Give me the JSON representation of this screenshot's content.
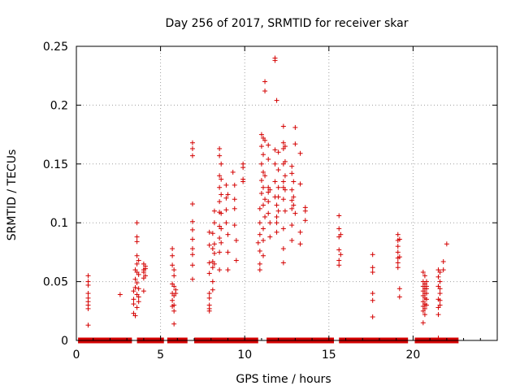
{
  "chart_data": {
    "type": "scatter",
    "title": "Day 256 of 2017, SRMTID for receiver skar",
    "xlabel": "GPS time / hours",
    "ylabel": "SRMTID / TECUs",
    "xlim": [
      0,
      25
    ],
    "ylim": [
      0,
      0.25
    ],
    "xticks": [
      0,
      5,
      10,
      15,
      20
    ],
    "xtick_labels": [
      "0",
      "5",
      "10",
      "15",
      "20"
    ],
    "yticks": [
      0,
      0.05,
      0.1,
      0.15,
      0.2,
      0.25
    ],
    "ytick_labels": [
      "0",
      "0.05",
      "0.1",
      "0.15",
      "0.2",
      "0.25"
    ],
    "grid": true,
    "legend": "none",
    "marker": "plus",
    "color": "#d40000",
    "zero_band": [
      [
        0.1,
        3.3
      ],
      [
        3.6,
        5.2
      ],
      [
        5.4,
        6.6
      ],
      [
        7.0,
        10.8
      ],
      [
        11.3,
        15.3
      ],
      [
        15.6,
        19.7
      ],
      [
        20.1,
        22.7
      ]
    ],
    "points": [
      [
        0.7,
        0.055
      ],
      [
        0.7,
        0.05
      ],
      [
        0.7,
        0.047
      ],
      [
        0.7,
        0.04
      ],
      [
        0.7,
        0.036
      ],
      [
        0.7,
        0.033
      ],
      [
        0.7,
        0.03
      ],
      [
        0.7,
        0.027
      ],
      [
        0.7,
        0.013
      ],
      [
        2.6,
        0.039
      ],
      [
        3.4,
        0.042
      ],
      [
        3.4,
        0.035
      ],
      [
        3.4,
        0.031
      ],
      [
        3.4,
        0.023
      ],
      [
        3.5,
        0.06
      ],
      [
        3.5,
        0.052
      ],
      [
        3.5,
        0.045
      ],
      [
        3.5,
        0.021
      ],
      [
        3.6,
        0.1
      ],
      [
        3.6,
        0.088
      ],
      [
        3.6,
        0.084
      ],
      [
        3.6,
        0.072
      ],
      [
        3.6,
        0.065
      ],
      [
        3.6,
        0.058
      ],
      [
        3.6,
        0.049
      ],
      [
        3.6,
        0.039
      ],
      [
        3.6,
        0.028
      ],
      [
        3.7,
        0.068
      ],
      [
        3.7,
        0.056
      ],
      [
        3.7,
        0.044
      ],
      [
        3.7,
        0.037
      ],
      [
        3.7,
        0.033
      ],
      [
        4.0,
        0.065
      ],
      [
        4.0,
        0.06
      ],
      [
        4.0,
        0.058
      ],
      [
        4.0,
        0.053
      ],
      [
        4.0,
        0.042
      ],
      [
        4.1,
        0.063
      ],
      [
        4.1,
        0.061
      ],
      [
        4.1,
        0.055
      ],
      [
        5.7,
        0.078
      ],
      [
        5.7,
        0.072
      ],
      [
        5.7,
        0.064
      ],
      [
        5.7,
        0.048
      ],
      [
        5.7,
        0.04
      ],
      [
        5.7,
        0.034
      ],
      [
        5.7,
        0.029
      ],
      [
        5.8,
        0.06
      ],
      [
        5.8,
        0.055
      ],
      [
        5.8,
        0.046
      ],
      [
        5.8,
        0.038
      ],
      [
        5.8,
        0.03
      ],
      [
        5.8,
        0.025
      ],
      [
        5.8,
        0.014
      ],
      [
        5.9,
        0.043
      ],
      [
        5.9,
        0.04
      ],
      [
        6.9,
        0.168
      ],
      [
        6.9,
        0.163
      ],
      [
        6.9,
        0.157
      ],
      [
        6.9,
        0.116
      ],
      [
        6.9,
        0.101
      ],
      [
        6.9,
        0.094
      ],
      [
        6.9,
        0.086
      ],
      [
        6.9,
        0.078
      ],
      [
        6.9,
        0.073
      ],
      [
        6.9,
        0.064
      ],
      [
        6.9,
        0.052
      ],
      [
        7.9,
        0.092
      ],
      [
        7.9,
        0.081
      ],
      [
        7.9,
        0.066
      ],
      [
        7.9,
        0.057
      ],
      [
        7.9,
        0.04
      ],
      [
        7.9,
        0.036
      ],
      [
        7.9,
        0.03
      ],
      [
        7.9,
        0.027
      ],
      [
        7.9,
        0.025
      ],
      [
        8.1,
        0.091
      ],
      [
        8.1,
        0.078
      ],
      [
        8.1,
        0.067
      ],
      [
        8.1,
        0.062
      ],
      [
        8.1,
        0.05
      ],
      [
        8.1,
        0.043
      ],
      [
        8.2,
        0.11
      ],
      [
        8.2,
        0.1
      ],
      [
        8.2,
        0.082
      ],
      [
        8.2,
        0.074
      ],
      [
        8.2,
        0.065
      ],
      [
        8.5,
        0.163
      ],
      [
        8.5,
        0.157
      ],
      [
        8.5,
        0.14
      ],
      [
        8.5,
        0.13
      ],
      [
        8.5,
        0.118
      ],
      [
        8.5,
        0.109
      ],
      [
        8.5,
        0.097
      ],
      [
        8.5,
        0.087
      ],
      [
        8.5,
        0.075
      ],
      [
        8.5,
        0.06
      ],
      [
        8.6,
        0.15
      ],
      [
        8.6,
        0.137
      ],
      [
        8.6,
        0.124
      ],
      [
        8.6,
        0.108
      ],
      [
        8.6,
        0.095
      ],
      [
        8.6,
        0.083
      ],
      [
        8.9,
        0.132
      ],
      [
        8.9,
        0.121
      ],
      [
        8.9,
        0.111
      ],
      [
        8.9,
        0.1
      ],
      [
        9.0,
        0.124
      ],
      [
        9.0,
        0.09
      ],
      [
        9.0,
        0.075
      ],
      [
        9.0,
        0.06
      ],
      [
        9.3,
        0.143
      ],
      [
        9.4,
        0.132
      ],
      [
        9.4,
        0.12
      ],
      [
        9.4,
        0.112
      ],
      [
        9.4,
        0.098
      ],
      [
        9.5,
        0.085
      ],
      [
        9.5,
        0.068
      ],
      [
        9.9,
        0.15
      ],
      [
        9.9,
        0.147
      ],
      [
        9.9,
        0.137
      ],
      [
        9.9,
        0.135
      ],
      [
        10.8,
        0.083
      ],
      [
        10.9,
        0.112
      ],
      [
        10.9,
        0.1
      ],
      [
        10.9,
        0.09
      ],
      [
        10.9,
        0.076
      ],
      [
        10.9,
        0.065
      ],
      [
        10.9,
        0.06
      ],
      [
        11.0,
        0.175
      ],
      [
        11.0,
        0.165
      ],
      [
        11.0,
        0.15
      ],
      [
        11.0,
        0.136
      ],
      [
        11.0,
        0.125
      ],
      [
        11.1,
        0.172
      ],
      [
        11.1,
        0.158
      ],
      [
        11.1,
        0.143
      ],
      [
        11.1,
        0.13
      ],
      [
        11.1,
        0.115
      ],
      [
        11.1,
        0.095
      ],
      [
        11.1,
        0.085
      ],
      [
        11.1,
        0.072
      ],
      [
        11.2,
        0.22
      ],
      [
        11.2,
        0.212
      ],
      [
        11.2,
        0.17
      ],
      [
        11.2,
        0.14
      ],
      [
        11.2,
        0.12
      ],
      [
        11.2,
        0.105
      ],
      [
        11.4,
        0.166
      ],
      [
        11.4,
        0.154
      ],
      [
        11.4,
        0.13
      ],
      [
        11.4,
        0.126
      ],
      [
        11.4,
        0.118
      ],
      [
        11.4,
        0.108
      ],
      [
        11.5,
        0.128
      ],
      [
        11.5,
        0.1
      ],
      [
        11.5,
        0.088
      ],
      [
        11.8,
        0.24
      ],
      [
        11.8,
        0.238
      ],
      [
        11.8,
        0.162
      ],
      [
        11.8,
        0.15
      ],
      [
        11.8,
        0.135
      ],
      [
        11.8,
        0.122
      ],
      [
        11.9,
        0.204
      ],
      [
        11.9,
        0.115
      ],
      [
        11.9,
        0.105
      ],
      [
        11.9,
        0.1
      ],
      [
        11.9,
        0.092
      ],
      [
        12.0,
        0.16
      ],
      [
        12.0,
        0.145
      ],
      [
        12.0,
        0.13
      ],
      [
        12.0,
        0.122
      ],
      [
        12.0,
        0.11
      ],
      [
        12.3,
        0.182
      ],
      [
        12.3,
        0.168
      ],
      [
        12.3,
        0.163
      ],
      [
        12.3,
        0.15
      ],
      [
        12.3,
        0.135
      ],
      [
        12.3,
        0.13
      ],
      [
        12.3,
        0.12
      ],
      [
        12.3,
        0.095
      ],
      [
        12.3,
        0.078
      ],
      [
        12.3,
        0.066
      ],
      [
        12.4,
        0.165
      ],
      [
        12.4,
        0.152
      ],
      [
        12.4,
        0.14
      ],
      [
        12.4,
        0.128
      ],
      [
        12.4,
        0.11
      ],
      [
        12.8,
        0.148
      ],
      [
        12.8,
        0.142
      ],
      [
        12.8,
        0.128
      ],
      [
        12.8,
        0.119
      ],
      [
        12.8,
        0.112
      ],
      [
        12.8,
        0.098
      ],
      [
        12.8,
        0.085
      ],
      [
        12.9,
        0.135
      ],
      [
        12.9,
        0.122
      ],
      [
        12.9,
        0.115
      ],
      [
        13.0,
        0.181
      ],
      [
        13.0,
        0.167
      ],
      [
        13.0,
        0.108
      ],
      [
        13.3,
        0.159
      ],
      [
        13.3,
        0.133
      ],
      [
        13.3,
        0.092
      ],
      [
        13.3,
        0.082
      ],
      [
        13.6,
        0.113
      ],
      [
        13.6,
        0.11
      ],
      [
        13.6,
        0.102
      ],
      [
        15.6,
        0.106
      ],
      [
        15.6,
        0.095
      ],
      [
        15.6,
        0.088
      ],
      [
        15.6,
        0.077
      ],
      [
        15.6,
        0.068
      ],
      [
        15.6,
        0.064
      ],
      [
        15.7,
        0.09
      ],
      [
        15.7,
        0.073
      ],
      [
        17.6,
        0.073
      ],
      [
        17.6,
        0.062
      ],
      [
        17.6,
        0.058
      ],
      [
        17.6,
        0.04
      ],
      [
        17.6,
        0.034
      ],
      [
        17.6,
        0.02
      ],
      [
        19.1,
        0.09
      ],
      [
        19.1,
        0.085
      ],
      [
        19.1,
        0.08
      ],
      [
        19.1,
        0.075
      ],
      [
        19.1,
        0.07
      ],
      [
        19.1,
        0.066
      ],
      [
        19.1,
        0.062
      ],
      [
        19.2,
        0.086
      ],
      [
        19.2,
        0.071
      ],
      [
        19.2,
        0.044
      ],
      [
        19.2,
        0.037
      ],
      [
        20.6,
        0.058
      ],
      [
        20.6,
        0.05
      ],
      [
        20.6,
        0.046
      ],
      [
        20.6,
        0.042
      ],
      [
        20.6,
        0.038
      ],
      [
        20.6,
        0.033
      ],
      [
        20.6,
        0.029
      ],
      [
        20.6,
        0.025
      ],
      [
        20.6,
        0.015
      ],
      [
        20.7,
        0.055
      ],
      [
        20.7,
        0.048
      ],
      [
        20.7,
        0.044
      ],
      [
        20.7,
        0.04
      ],
      [
        20.7,
        0.036
      ],
      [
        20.7,
        0.031
      ],
      [
        20.7,
        0.027
      ],
      [
        20.7,
        0.022
      ],
      [
        20.8,
        0.046
      ],
      [
        20.8,
        0.04
      ],
      [
        20.8,
        0.035
      ],
      [
        20.8,
        0.03
      ],
      [
        20.8,
        0.05
      ],
      [
        20.8,
        0.044
      ],
      [
        21.5,
        0.06
      ],
      [
        21.5,
        0.054
      ],
      [
        21.5,
        0.046
      ],
      [
        21.5,
        0.035
      ],
      [
        21.5,
        0.028
      ],
      [
        21.5,
        0.022
      ],
      [
        21.5,
        0.002
      ],
      [
        21.6,
        0.058
      ],
      [
        21.6,
        0.05
      ],
      [
        21.6,
        0.044
      ],
      [
        21.6,
        0.04
      ],
      [
        21.6,
        0.034
      ],
      [
        21.6,
        0.03
      ],
      [
        21.8,
        0.067
      ],
      [
        21.8,
        0.06
      ],
      [
        22.0,
        0.082
      ]
    ]
  }
}
